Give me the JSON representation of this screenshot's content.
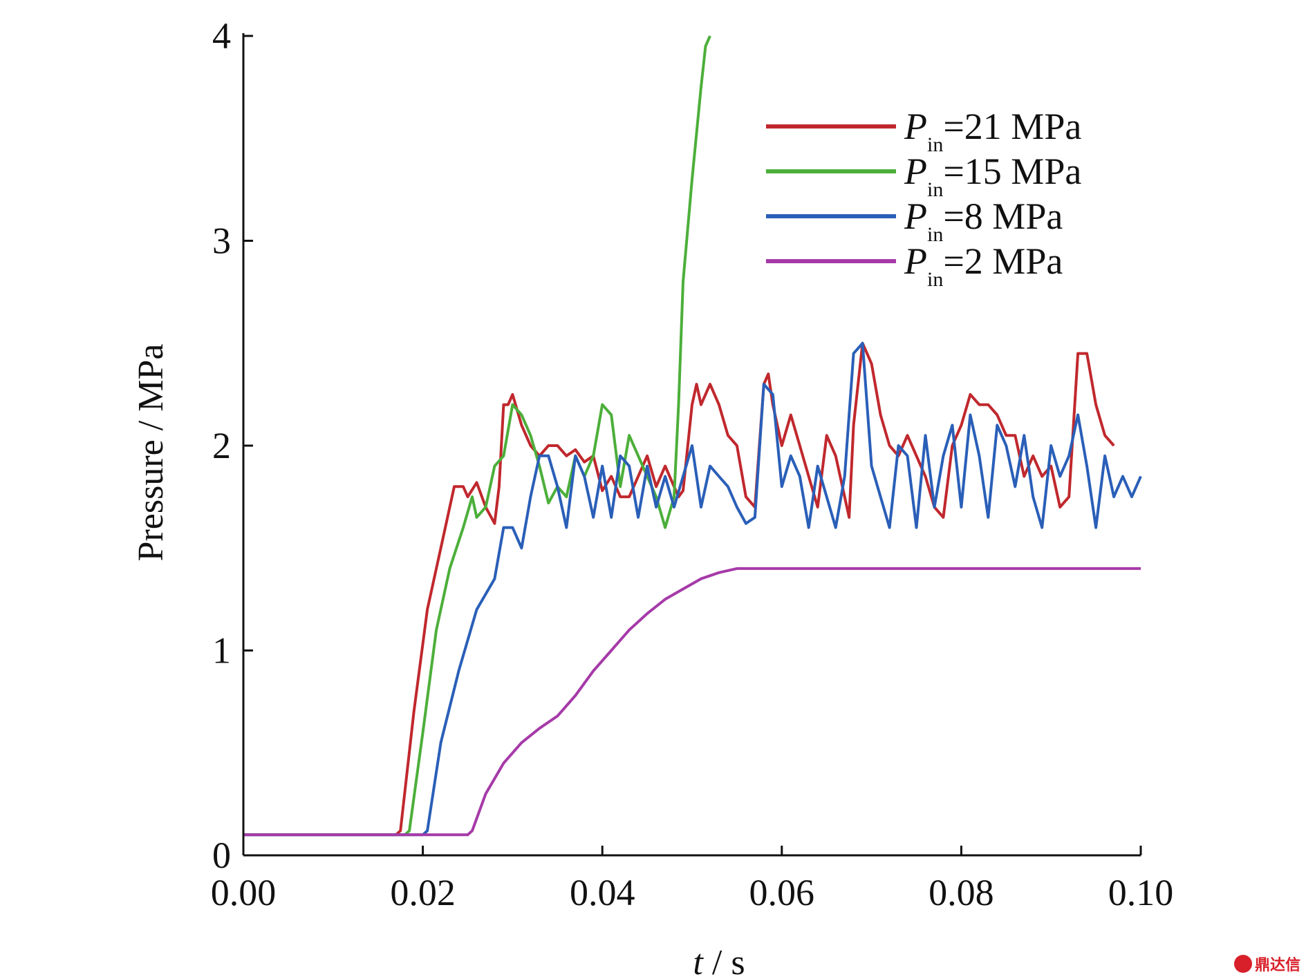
{
  "chart_data": {
    "type": "line",
    "xlabel_italic": "t",
    "xlabel_rest": " / s",
    "ylabel": "Pressure / MPa",
    "xlim": [
      0.0,
      0.1
    ],
    "ylim": [
      0,
      4
    ],
    "x_ticks": [
      "0.00",
      "0.02",
      "0.04",
      "0.06",
      "0.08",
      "0.10"
    ],
    "y_ticks": [
      "0",
      "1",
      "2",
      "3",
      "4"
    ],
    "grid": false,
    "legend_position": "top-right",
    "series": [
      {
        "name": "P_in=21 MPa",
        "legend": {
          "sym": "P",
          "sub": "in",
          "rest": "=21 MPa"
        },
        "color": "#c0282d",
        "x": [
          0,
          0.017,
          0.0175,
          0.019,
          0.0205,
          0.022,
          0.0235,
          0.0245,
          0.025,
          0.026,
          0.027,
          0.028,
          0.0285,
          0.029,
          0.0295,
          0.03,
          0.031,
          0.032,
          0.033,
          0.034,
          0.035,
          0.036,
          0.037,
          0.038,
          0.039,
          0.04,
          0.041,
          0.042,
          0.043,
          0.044,
          0.045,
          0.046,
          0.047,
          0.048,
          0.0485,
          0.049,
          0.05,
          0.0505,
          0.051,
          0.052,
          0.053,
          0.054,
          0.055,
          0.056,
          0.057,
          0.058,
          0.0585,
          0.059,
          0.06,
          0.061,
          0.062,
          0.063,
          0.064,
          0.065,
          0.066,
          0.067,
          0.0675,
          0.068,
          0.069,
          0.07,
          0.071,
          0.072,
          0.073,
          0.074,
          0.075,
          0.076,
          0.077,
          0.078,
          0.079,
          0.08,
          0.081,
          0.082,
          0.083,
          0.084,
          0.085,
          0.086,
          0.087,
          0.088,
          0.089,
          0.09,
          0.091,
          0.092,
          0.093,
          0.094,
          0.095,
          0.096,
          0.097
        ],
        "y": [
          0.1,
          0.1,
          0.12,
          0.7,
          1.2,
          1.5,
          1.8,
          1.8,
          1.75,
          1.82,
          1.7,
          1.62,
          1.8,
          2.2,
          2.2,
          2.25,
          2.1,
          2.0,
          1.95,
          2.0,
          2.0,
          1.95,
          1.98,
          1.92,
          1.95,
          1.78,
          1.85,
          1.75,
          1.75,
          1.85,
          1.95,
          1.8,
          1.9,
          1.8,
          1.75,
          1.78,
          2.2,
          2.3,
          2.2,
          2.3,
          2.2,
          2.05,
          2.0,
          1.75,
          1.7,
          2.3,
          2.35,
          2.2,
          2.0,
          2.15,
          2.0,
          1.85,
          1.7,
          2.05,
          1.95,
          1.75,
          1.65,
          2.1,
          2.5,
          2.4,
          2.15,
          2.0,
          1.95,
          2.05,
          1.95,
          1.85,
          1.7,
          1.65,
          2.0,
          2.1,
          2.25,
          2.2,
          2.2,
          2.15,
          2.05,
          2.05,
          1.85,
          1.95,
          1.85,
          1.9,
          1.7,
          1.75,
          2.45,
          2.45,
          2.2,
          2.05,
          2.0
        ]
      },
      {
        "name": "P_in=15 MPa",
        "legend": {
          "sym": "P",
          "sub": "in",
          "rest": "=15 MPa"
        },
        "color": "#4caf3a",
        "x": [
          0,
          0.018,
          0.0185,
          0.02,
          0.0215,
          0.023,
          0.0245,
          0.0255,
          0.026,
          0.027,
          0.028,
          0.029,
          0.03,
          0.031,
          0.032,
          0.033,
          0.034,
          0.035,
          0.036,
          0.037,
          0.038,
          0.039,
          0.04,
          0.041,
          0.042,
          0.043,
          0.044,
          0.045,
          0.046,
          0.047,
          0.048,
          0.0485,
          0.049,
          0.05,
          0.051,
          0.0515,
          0.052
        ],
        "y": [
          0.1,
          0.1,
          0.12,
          0.6,
          1.1,
          1.4,
          1.6,
          1.75,
          1.65,
          1.7,
          1.9,
          1.95,
          2.2,
          2.15,
          2.05,
          1.9,
          1.72,
          1.8,
          1.75,
          1.95,
          1.85,
          1.95,
          2.2,
          2.15,
          1.8,
          2.05,
          1.95,
          1.85,
          1.75,
          1.6,
          1.75,
          2.2,
          2.8,
          3.3,
          3.75,
          3.95,
          4.0
        ]
      },
      {
        "name": "P_in=8 MPa",
        "legend": {
          "sym": "P",
          "sub": "in",
          "rest": "=8 MPa"
        },
        "color": "#2a5fb8",
        "x": [
          0,
          0.02,
          0.0205,
          0.022,
          0.024,
          0.026,
          0.028,
          0.029,
          0.03,
          0.031,
          0.032,
          0.033,
          0.034,
          0.035,
          0.036,
          0.037,
          0.038,
          0.039,
          0.04,
          0.041,
          0.042,
          0.043,
          0.044,
          0.045,
          0.046,
          0.047,
          0.048,
          0.049,
          0.05,
          0.051,
          0.052,
          0.053,
          0.054,
          0.055,
          0.056,
          0.057,
          0.058,
          0.059,
          0.06,
          0.061,
          0.062,
          0.063,
          0.064,
          0.065,
          0.066,
          0.067,
          0.068,
          0.069,
          0.07,
          0.071,
          0.072,
          0.073,
          0.074,
          0.075,
          0.076,
          0.077,
          0.078,
          0.079,
          0.08,
          0.081,
          0.082,
          0.083,
          0.084,
          0.085,
          0.086,
          0.087,
          0.088,
          0.089,
          0.09,
          0.091,
          0.092,
          0.093,
          0.094,
          0.095,
          0.096,
          0.097,
          0.098,
          0.099,
          0.1
        ],
        "y": [
          0.1,
          0.1,
          0.12,
          0.55,
          0.9,
          1.2,
          1.35,
          1.6,
          1.6,
          1.5,
          1.75,
          1.95,
          1.95,
          1.8,
          1.6,
          1.95,
          1.85,
          1.65,
          1.9,
          1.65,
          1.95,
          1.9,
          1.65,
          1.9,
          1.7,
          1.85,
          1.7,
          1.85,
          2.0,
          1.7,
          1.9,
          1.85,
          1.8,
          1.7,
          1.62,
          1.65,
          2.3,
          2.25,
          1.8,
          1.95,
          1.85,
          1.6,
          1.9,
          1.75,
          1.6,
          1.85,
          2.45,
          2.5,
          1.9,
          1.75,
          1.6,
          2.0,
          1.95,
          1.6,
          2.05,
          1.7,
          1.95,
          2.1,
          1.7,
          2.15,
          1.95,
          1.65,
          2.1,
          2.0,
          1.8,
          2.05,
          1.75,
          1.6,
          2.0,
          1.85,
          1.95,
          2.15,
          1.9,
          1.6,
          1.95,
          1.75,
          1.85,
          1.75,
          1.85
        ]
      },
      {
        "name": "P_in=2 MPa",
        "legend": {
          "sym": "P",
          "sub": "in",
          "rest": "=2 MPa"
        },
        "color": "#a63aa8",
        "x": [
          0,
          0.025,
          0.0255,
          0.027,
          0.029,
          0.031,
          0.033,
          0.035,
          0.037,
          0.039,
          0.041,
          0.043,
          0.045,
          0.047,
          0.049,
          0.051,
          0.053,
          0.055,
          0.057,
          0.06,
          0.07,
          0.08,
          0.09,
          0.1
        ],
        "y": [
          0.1,
          0.1,
          0.12,
          0.3,
          0.45,
          0.55,
          0.62,
          0.68,
          0.78,
          0.9,
          1.0,
          1.1,
          1.18,
          1.25,
          1.3,
          1.35,
          1.38,
          1.4,
          1.4,
          1.4,
          1.4,
          1.4,
          1.4,
          1.4
        ]
      }
    ]
  },
  "watermark": {
    "text": "鼎达信"
  }
}
